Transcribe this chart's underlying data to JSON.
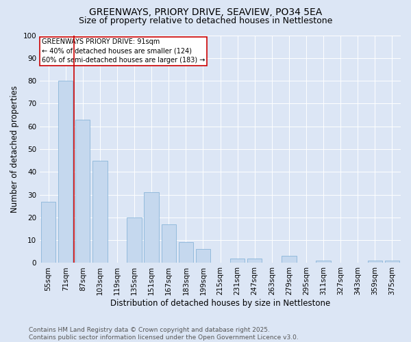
{
  "title": "GREENWAYS, PRIORY DRIVE, SEAVIEW, PO34 5EA",
  "subtitle": "Size of property relative to detached houses in Nettlestone",
  "xlabel": "Distribution of detached houses by size in Nettlestone",
  "ylabel": "Number of detached properties",
  "categories": [
    "55sqm",
    "71sqm",
    "87sqm",
    "103sqm",
    "119sqm",
    "135sqm",
    "151sqm",
    "167sqm",
    "183sqm",
    "199sqm",
    "215sqm",
    "231sqm",
    "247sqm",
    "263sqm",
    "279sqm",
    "295sqm",
    "311sqm",
    "327sqm",
    "343sqm",
    "359sqm",
    "375sqm"
  ],
  "values": [
    27,
    80,
    63,
    45,
    0,
    20,
    31,
    17,
    9,
    6,
    0,
    2,
    2,
    0,
    3,
    0,
    1,
    0,
    0,
    1,
    1
  ],
  "bar_color": "#c5d8ee",
  "bar_edge_color": "#7aadd4",
  "red_line_index": 2,
  "annotation_text": "GREENWAYS PRIORY DRIVE: 91sqm\n← 40% of detached houses are smaller (124)\n60% of semi-detached houses are larger (183) →",
  "annotation_box_color": "#ffffff",
  "annotation_box_edge": "#cc0000",
  "red_line_color": "#cc0000",
  "background_color": "#dce6f5",
  "plot_bg_color": "#dce6f5",
  "ylim": [
    0,
    100
  ],
  "yticks": [
    0,
    10,
    20,
    30,
    40,
    50,
    60,
    70,
    80,
    90,
    100
  ],
  "footer": "Contains HM Land Registry data © Crown copyright and database right 2025.\nContains public sector information licensed under the Open Government Licence v3.0.",
  "title_fontsize": 10,
  "subtitle_fontsize": 9,
  "axis_label_fontsize": 8.5,
  "tick_fontsize": 7.5,
  "annotation_fontsize": 7,
  "footer_fontsize": 6.5
}
